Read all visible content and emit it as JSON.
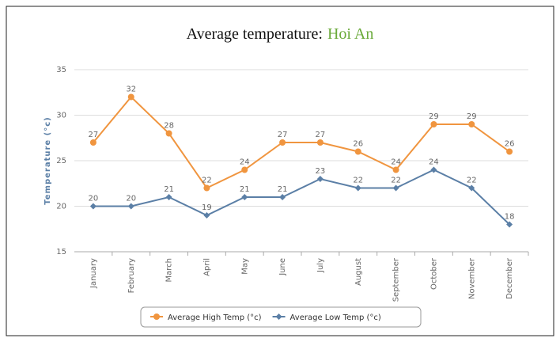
{
  "chart_data": {
    "type": "line",
    "title": "Average temperature:",
    "location": "Hoi An",
    "ylabel": "Temperature (°c)",
    "categories": [
      "January",
      "February",
      "March",
      "April",
      "May",
      "June",
      "July",
      "August",
      "September",
      "October",
      "November",
      "December"
    ],
    "series": [
      {
        "name": "Average High Temp (°c)",
        "color": "#f0953f",
        "marker": "circle",
        "values": [
          27,
          32,
          28,
          22,
          24,
          27,
          27,
          26,
          24,
          29,
          29,
          26
        ]
      },
      {
        "name": "Average Low Temp (°c)",
        "color": "#5b7fa6",
        "marker": "diamond",
        "values": [
          20,
          20,
          21,
          19,
          21,
          21,
          23,
          22,
          22,
          24,
          22,
          18
        ]
      }
    ],
    "ylim": [
      15,
      35
    ],
    "yticks": [
      15,
      20,
      25,
      30,
      35
    ],
    "grid": true,
    "legend": "bottom"
  }
}
